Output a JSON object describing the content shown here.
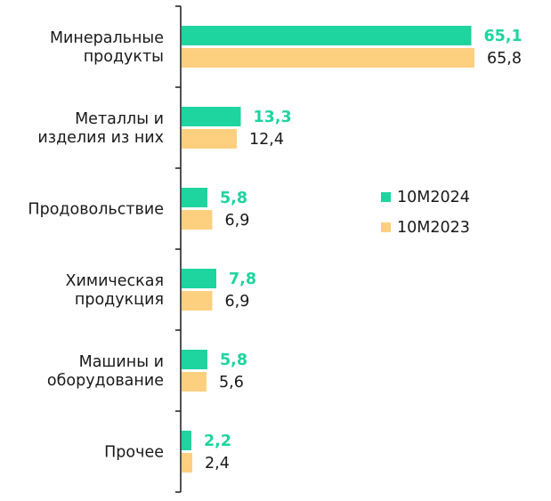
{
  "chart_data": {
    "type": "bar",
    "orientation": "horizontal",
    "categories": [
      [
        "Минеральные",
        "продукты"
      ],
      [
        "Металлы и",
        "изделия из них"
      ],
      [
        "Продовольствие"
      ],
      [
        "Химическая",
        "продукция"
      ],
      [
        "Машины и",
        "оборудование"
      ],
      [
        "Прочее"
      ]
    ],
    "series": [
      {
        "name": "10М2024",
        "color": "#1ed49f",
        "values": [
          65.1,
          13.3,
          5.8,
          7.8,
          5.8,
          2.2
        ],
        "labels": [
          "65,1",
          "13,3",
          "5,8",
          "7,8",
          "5,8",
          "2,2"
        ],
        "label_bold": true
      },
      {
        "name": "10М2023",
        "color": "#fdd080",
        "values": [
          65.8,
          12.4,
          6.9,
          6.9,
          5.6,
          2.4
        ],
        "labels": [
          "65,8",
          "12,4",
          "6,9",
          "6,9",
          "5,6",
          "2,4"
        ],
        "label_bold": false
      }
    ],
    "xlim": [
      0,
      70
    ],
    "legend_position": "right-middle",
    "grid": false
  }
}
